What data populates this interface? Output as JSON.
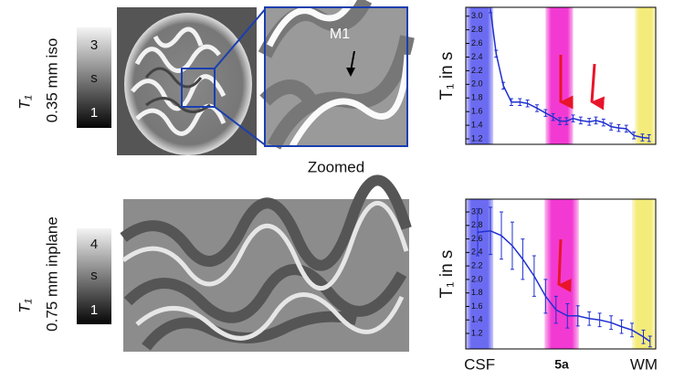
{
  "rows": [
    {
      "symbol": "T₁",
      "resolution": "0.35 mm iso",
      "colorbar": {
        "max": "3",
        "unit": "s",
        "min": "1"
      }
    },
    {
      "symbol": "T₁",
      "resolution": "0.75 mm inplane",
      "colorbar": {
        "max": "4",
        "unit": "s",
        "min": "1"
      }
    }
  ],
  "zoom": {
    "label": "Zoomed",
    "marker": "M1"
  },
  "chart_data": [
    {
      "type": "line",
      "ylabel": "T₁ in s",
      "xlim": [
        0,
        20
      ],
      "ylim": [
        1.12,
        3.13
      ],
      "yticks": [
        1.2,
        1.4,
        1.6,
        1.8,
        {
          "value": 2,
          "label": "2.0"
        },
        2.2,
        2.4,
        2.6,
        2.8,
        {
          "value": 3,
          "label": "3.0"
        }
      ],
      "regions": [
        {
          "color": "#6b6bf2",
          "x": [
            0,
            2.9
          ]
        },
        {
          "color": "#f23ad2",
          "x": [
            8.4,
            11.3
          ]
        },
        {
          "color": "#f4ec7a",
          "x": [
            17.8,
            20
          ]
        }
      ],
      "series": [
        {
          "color": "#2030d0",
          "x": [
            2.6,
            3.2,
            3.96,
            4.8,
            5.7,
            6.5,
            7.5,
            8.4,
            9.2,
            9.9,
            10.6,
            11.3,
            12.1,
            13.0,
            13.7,
            14.5,
            15.3,
            16.1,
            16.9,
            17.7,
            18.6,
            19.3
          ],
          "values": [
            3.1,
            2.45,
            1.98,
            1.74,
            1.74,
            1.72,
            1.65,
            1.58,
            1.52,
            1.46,
            1.46,
            1.5,
            1.47,
            1.45,
            1.47,
            1.44,
            1.38,
            1.36,
            1.35,
            1.25,
            1.22,
            1.21
          ],
          "errors": [
            0.05,
            0.05,
            0.05,
            0.05,
            0.05,
            0.05,
            0.05,
            0.05,
            0.05,
            0.05,
            0.05,
            0.05,
            0.05,
            0.05,
            0.05,
            0.05,
            0.05,
            0.05,
            0.05,
            0.05,
            0.05,
            0.05
          ]
        }
      ]
    },
    {
      "type": "line",
      "ylabel": "T₁ in s",
      "xlim": [
        0,
        20
      ],
      "ylim": [
        0.97,
        3.19
      ],
      "yticks": [
        1.2,
        1.4,
        1.6,
        1.8,
        {
          "value": 2,
          "label": "2.0"
        },
        2.2,
        2.4,
        2.6,
        2.8,
        {
          "value": 3,
          "label": "3.0"
        }
      ],
      "regions": [
        {
          "name": "CSF",
          "color": "#6b6bf2",
          "x": [
            0,
            2.9
          ]
        },
        {
          "name": "5a",
          "color": "#f23ad2",
          "x": [
            8.3,
            11.9
          ]
        },
        {
          "name": "WM",
          "color": "#f4ec7a",
          "x": [
            17.5,
            20
          ]
        }
      ],
      "series": [
        {
          "color": "#2030d0",
          "x": [
            1.25,
            2.6,
            3.75,
            4.9,
            6.0,
            7.2,
            8.4,
            9.5,
            10.7,
            11.8,
            13.0,
            14.1,
            15.3,
            16.4,
            17.5,
            18.7,
            19.4
          ],
          "values": [
            2.7,
            2.72,
            2.65,
            2.5,
            2.3,
            2.05,
            1.75,
            1.55,
            1.46,
            1.46,
            1.42,
            1.4,
            1.36,
            1.3,
            1.25,
            1.15,
            1.08
          ],
          "errors": [
            0.35,
            0.35,
            0.35,
            0.35,
            0.3,
            0.3,
            0.25,
            0.2,
            0.18,
            0.15,
            0.1,
            0.1,
            0.1,
            0.1,
            0.1,
            0.1,
            0.08
          ]
        }
      ]
    }
  ]
}
